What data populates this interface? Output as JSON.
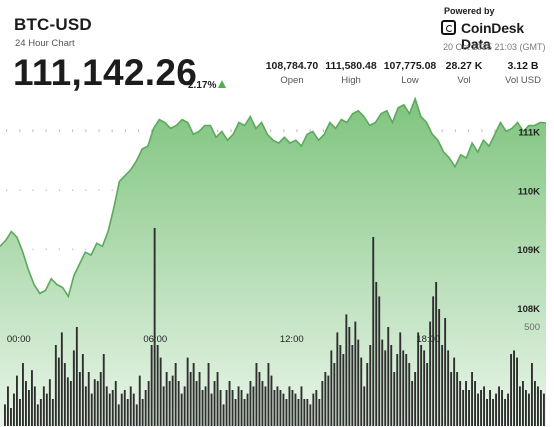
{
  "header": {
    "symbol": "BTC-USD",
    "subtitle": "24 Hour Chart",
    "price": "111,142.26",
    "change": "2.17%",
    "change_direction": "up",
    "powered_by": "Powered by",
    "brand": "CoinDesk Data",
    "brand_icon": "coindesk-logo-icon",
    "timestamp": "20 Oct 2025 21:03 (GMT)"
  },
  "stats": [
    {
      "value": "108,784.70",
      "label": "Open"
    },
    {
      "value": "111,580.48",
      "label": "High"
    },
    {
      "value": "107,775.08",
      "label": "Low"
    },
    {
      "value": "28.27 K",
      "label": "Vol"
    },
    {
      "value": "3.12 B",
      "label": "Vol USD"
    }
  ],
  "colors": {
    "line": "#5aaa5a",
    "area_top": "#7fc47f",
    "area_bottom": "#e9f5e9",
    "volume": "#2f2f2f",
    "up_arrow": "#4caf50"
  },
  "chart_data": {
    "type": "area",
    "series": [
      {
        "x": [
          0,
          0.25,
          0.5,
          0.75,
          1,
          1.25,
          1.5,
          1.75,
          2,
          2.25,
          2.5,
          2.75,
          3,
          3.25,
          3.5,
          3.75,
          4,
          4.25,
          4.5,
          4.75,
          5,
          5.25,
          5.5,
          5.75,
          6,
          6.25,
          6.5,
          6.75,
          7,
          7.25,
          7.5,
          7.75,
          8,
          8.25,
          8.5,
          8.75,
          9,
          9.25,
          9.5,
          9.75,
          10,
          10.25,
          10.5,
          10.75,
          11,
          11.25,
          11.5,
          11.75,
          12,
          12.25,
          12.5,
          12.75,
          13,
          13.25,
          13.5,
          13.75,
          14,
          14.25,
          14.5,
          14.75,
          15,
          15.25,
          15.5,
          15.75,
          16,
          16.25,
          16.5,
          16.75,
          17,
          17.25,
          17.5,
          17.75,
          18,
          18.25,
          18.5,
          18.75,
          19,
          19.25,
          19.5,
          19.75,
          20,
          20.25,
          20.5,
          20.75,
          21,
          21.25,
          21.5,
          21.75,
          22,
          22.25,
          22.5,
          22.75,
          23,
          23.25,
          23.5,
          23.75,
          24
        ],
        "values": [
          109050,
          109150,
          109300,
          109200,
          108950,
          108650,
          108400,
          108250,
          108300,
          108500,
          108400,
          108350,
          108200,
          108550,
          108750,
          108950,
          108900,
          109100,
          109050,
          109300,
          109700,
          110150,
          110250,
          110350,
          110500,
          110700,
          110750,
          111050,
          111200,
          111150,
          111050,
          111100,
          111200,
          111150,
          110950,
          111000,
          111100,
          111100,
          110900,
          111000,
          110850,
          110950,
          111150,
          111100,
          111250,
          111050,
          111150,
          110950,
          110850,
          110800,
          110900,
          110800,
          110850,
          110750,
          110950,
          111000,
          110850,
          110950,
          111150,
          111050,
          111200,
          111150,
          111300,
          111350,
          111250,
          111100,
          111150,
          111300,
          111350,
          111150,
          111400,
          111450,
          111300,
          111550,
          111250,
          111150,
          110950,
          110850,
          110650,
          110550,
          110400,
          110600,
          110550,
          110800,
          110650,
          110850,
          110750,
          110950,
          111150,
          111000,
          111050,
          111150,
          111000,
          111100,
          111100,
          111150,
          111142
        ]
      }
    ],
    "volume": [
      0.12,
      0.22,
      0.1,
      0.18,
      0.28,
      0.15,
      0.35,
      0.25,
      0.2,
      0.31,
      0.22,
      0.12,
      0.15,
      0.22,
      0.18,
      0.26,
      0.15,
      0.45,
      0.38,
      0.52,
      0.35,
      0.27,
      0.25,
      0.42,
      0.55,
      0.3,
      0.4,
      0.22,
      0.3,
      0.18,
      0.26,
      0.25,
      0.3,
      0.4,
      0.22,
      0.18,
      0.2,
      0.25,
      0.12,
      0.18,
      0.2,
      0.15,
      0.22,
      0.18,
      0.12,
      0.28,
      0.15,
      0.2,
      0.25,
      0.45,
      1.1,
      0.45,
      0.38,
      0.22,
      0.3,
      0.25,
      0.28,
      0.35,
      0.25,
      0.18,
      0.22,
      0.38,
      0.3,
      0.35,
      0.25,
      0.3,
      0.2,
      0.22,
      0.35,
      0.18,
      0.25,
      0.3,
      0.2,
      0.12,
      0.2,
      0.25,
      0.2,
      0.15,
      0.22,
      0.2,
      0.15,
      0.18,
      0.25,
      0.22,
      0.35,
      0.3,
      0.25,
      0.22,
      0.35,
      0.28,
      0.2,
      0.22,
      0.2,
      0.18,
      0.15,
      0.22,
      0.2,
      0.18,
      0.15,
      0.22,
      0.15,
      0.15,
      0.12,
      0.18,
      0.2,
      0.15,
      0.25,
      0.3,
      0.28,
      0.42,
      0.35,
      0.52,
      0.45,
      0.4,
      0.62,
      0.55,
      0.45,
      0.58,
      0.48,
      0.38,
      0.22,
      0.35,
      0.45,
      1.05,
      0.8,
      0.72,
      0.48,
      0.42,
      0.55,
      0.45,
      0.3,
      0.4,
      0.52,
      0.42,
      0.4,
      0.35,
      0.25,
      0.3,
      0.52,
      0.45,
      0.42,
      0.35,
      0.58,
      0.72,
      0.8,
      0.65,
      0.45,
      0.6,
      0.42,
      0.3,
      0.38,
      0.3,
      0.25,
      0.2,
      0.25,
      0.2,
      0.3,
      0.25,
      0.18,
      0.2,
      0.22,
      0.15,
      0.2,
      0.15,
      0.18,
      0.22,
      0.2,
      0.15,
      0.18,
      0.4,
      0.42,
      0.38,
      0.22,
      0.25,
      0.2,
      0.18,
      0.35,
      0.25,
      0.22,
      0.2,
      0.18
    ],
    "x_ticks": [
      {
        "x": 1,
        "label": "00:00"
      },
      {
        "x": 7,
        "label": "06:00"
      },
      {
        "x": 13,
        "label": "12:00"
      },
      {
        "x": 19,
        "label": "18:00"
      }
    ],
    "y_ticks": [
      {
        "y": 108000,
        "label": "108K"
      },
      {
        "y": 109000,
        "label": "109K"
      },
      {
        "y": 110000,
        "label": "110K"
      },
      {
        "y": 111000,
        "label": "111K"
      }
    ],
    "volume_tick": {
      "value": 500,
      "label": "500"
    },
    "ylim": [
      106000,
      111600
    ],
    "xlim": [
      0,
      24
    ],
    "grid": true
  }
}
